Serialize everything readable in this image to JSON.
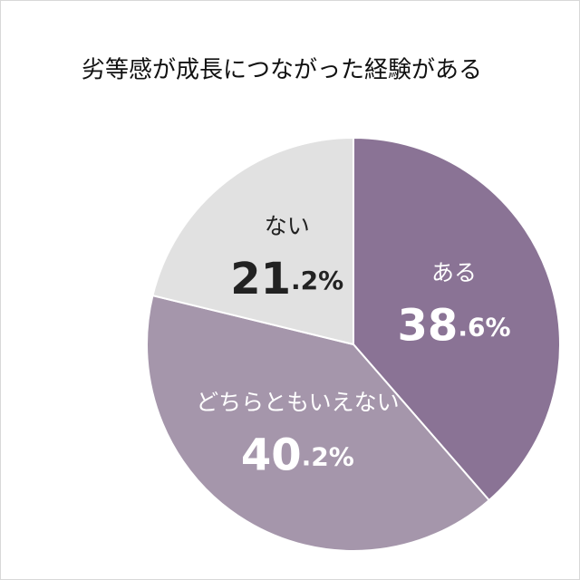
{
  "chart_data": {
    "type": "pie",
    "title": "劣等感が成長につながった経験がある",
    "categories": [
      "ある",
      "どちらともいえない",
      "ない"
    ],
    "values": [
      38.6,
      40.2,
      21.2
    ],
    "value_labels": [
      "38.6%",
      "40.2%",
      "21.2%"
    ],
    "colors": [
      "#8a7395",
      "#a596ab",
      "#e1e1e1"
    ]
  }
}
